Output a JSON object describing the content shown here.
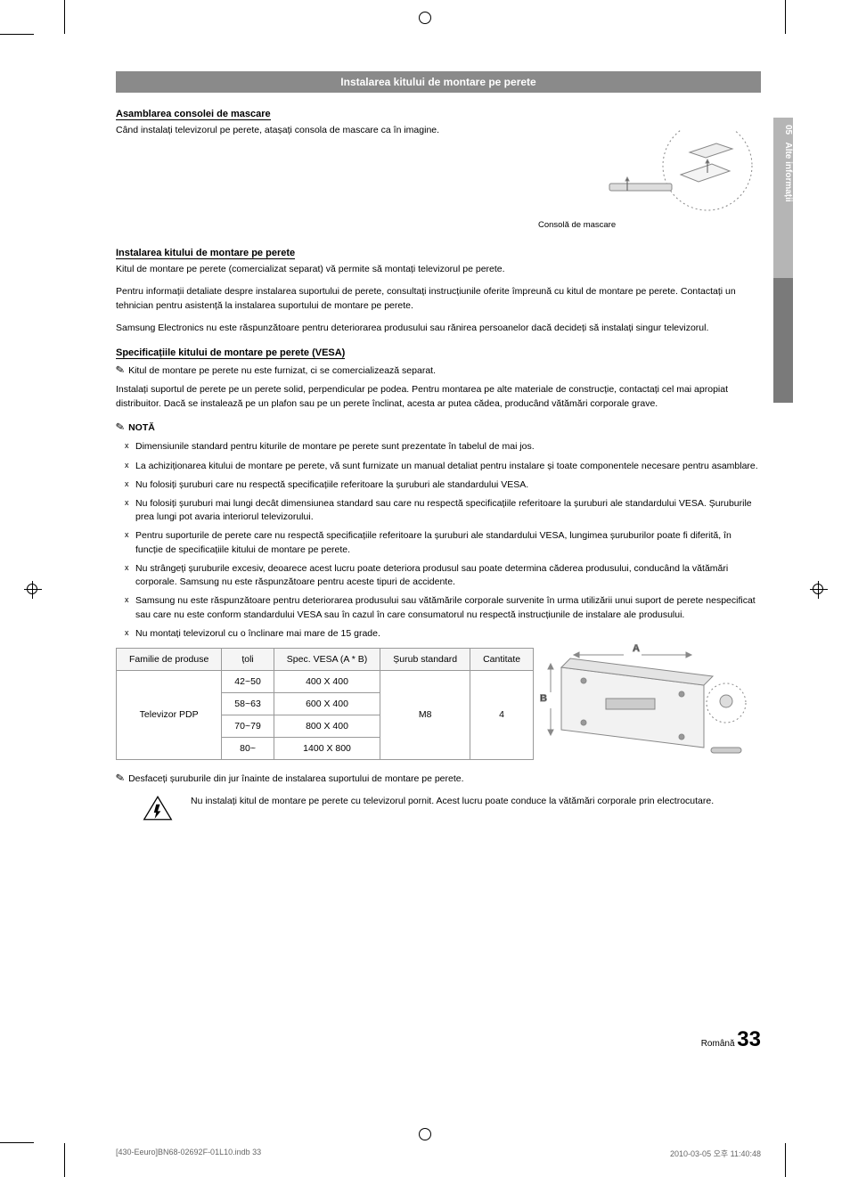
{
  "sideTab": {
    "chapter": "05",
    "label": "Alte informații"
  },
  "sectionTitle": "Instalarea kitului de montare pe perete",
  "sub1": {
    "heading": "Asamblarea consolei de mascare",
    "text": "Când instalați televizorul pe perete, atașați consola de mascare ca în imagine.",
    "figLabel": "Consolă de mascare"
  },
  "sub2": {
    "heading": "Instalarea kitului de montare pe perete",
    "p1": "Kitul de montare pe perete (comercializat separat) vă permite să montați televizorul pe perete.",
    "p2": "Pentru informații detaliate despre instalarea suportului de perete, consultați instrucțiunile oferite împreună cu kitul de montare pe perete. Contactați un tehnician pentru asistență la instalarea suportului de montare pe perete.",
    "p3": "Samsung Electronics nu este răspunzătoare pentru deteriorarea produsului sau rănirea persoanelor dacă decideți să instalați singur televizorul."
  },
  "sub3": {
    "heading": "Specificațiile kitului de montare pe perete (VESA)",
    "lead": "Kitul de montare pe perete nu este furnizat, ci se comercializează separat.",
    "p1": "Instalați suportul de perete pe un perete solid, perpendicular pe podea. Pentru montarea pe alte materiale de construcție, contactați cel mai apropiat distribuitor. Dacă se instalează pe un plafon sau pe un perete înclinat, acesta ar putea cădea, producând vătămări corporale grave.",
    "noteLabel": "NOTĂ",
    "bullets": [
      "Dimensiunile standard pentru kiturile de montare pe perete sunt prezentate în tabelul de mai jos.",
      "La achiziționarea kitului de montare pe perete, vă sunt furnizate un manual detaliat pentru instalare și toate componentele necesare pentru asamblare.",
      "Nu folosiți șuruburi care nu respectă specificațiile referitoare la șuruburi ale standardului VESA.",
      "Nu folosiți șuruburi mai lungi decât dimensiunea standard sau care nu respectă specificațiile referitoare la șuruburi ale standardului VESA. Șuruburile prea lungi pot avaria interiorul televizorului.",
      "Pentru suporturile de perete care nu respectă specificațiile referitoare la șuruburi ale standardului VESA, lungimea șuruburilor poate fi diferită, în funcție de specificațiile kitului de montare pe perete.",
      "Nu strângeți șuruburile excesiv, deoarece acest lucru poate deteriora produsul sau poate determina căderea produsului, conducând la vătămări corporale. Samsung nu este răspunzătoare pentru aceste tipuri de accidente.",
      "Samsung nu este răspunzătoare pentru deteriorarea produsului sau vătămările corporale survenite în urma utilizării unui suport de perete nespecificat sau care nu este conform standardului VESA sau în cazul în care consumatorul nu respectă instrucțiunile de instalare ale produsului.",
      "Nu montați televizorul cu o înclinare mai mare de 15 grade."
    ]
  },
  "table": {
    "columns": [
      "Familie de produse",
      "țoli",
      "Spec. VESA (A * B)",
      "Șurub standard",
      "Cantitate"
    ],
    "familyLabel": "Televizor PDP",
    "screw": "M8",
    "qty": "4",
    "rows": [
      {
        "inch": "42~50",
        "spec": "400 X 400"
      },
      {
        "inch": "58~63",
        "spec": "600 X 400"
      },
      {
        "inch": "70~79",
        "spec": "800 X 400"
      },
      {
        "inch": "80~",
        "spec": "1400 X 800"
      }
    ],
    "figA": "A",
    "figB": "B"
  },
  "postTable": "Desfaceți șuruburile din jur înainte de instalarea suportului de montare pe perete.",
  "warning": "Nu instalați kitul de montare pe perete cu televizorul pornit. Acest lucru poate conduce la vătămări corporale prin electrocutare.",
  "footer": {
    "lang": "Română",
    "page": "33"
  },
  "printFooter": {
    "left": "[430-Eeuro]BN68-02692F-01L10.indb   33",
    "right": "2010-03-05   오후 11:40:48"
  }
}
